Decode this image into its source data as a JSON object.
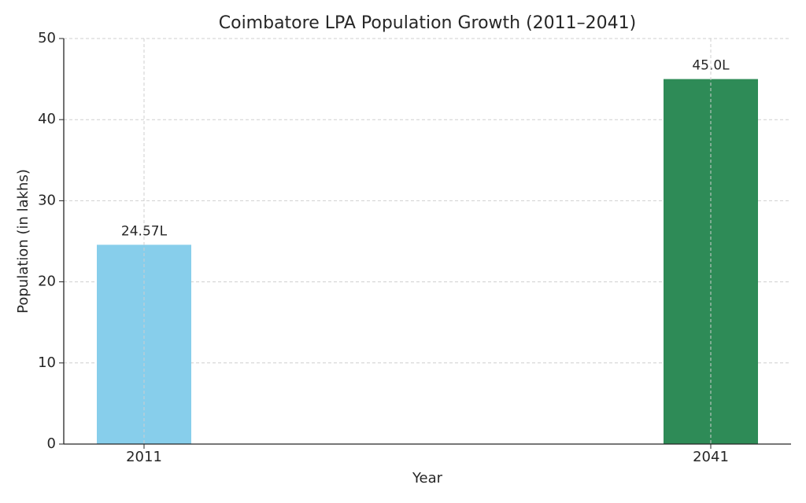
{
  "chart_data": {
    "type": "bar",
    "title": "Coimbatore LPA Population Growth (2011–2041)",
    "x_label": "Year",
    "y_label": "Population (in lakhs)",
    "x": [
      2011,
      2041
    ],
    "values": [
      24.57,
      45.0
    ],
    "value_labels": [
      "24.57L",
      "45.0L"
    ],
    "colors": [
      "#87ceeb",
      "#2e8b57"
    ],
    "xlim": [
      2006.75,
      2045.25
    ],
    "xticks": [
      2011,
      2041
    ],
    "ylim": [
      0,
      50
    ],
    "yticks": [
      0,
      10,
      20,
      30,
      40,
      50
    ],
    "grid": true
  }
}
